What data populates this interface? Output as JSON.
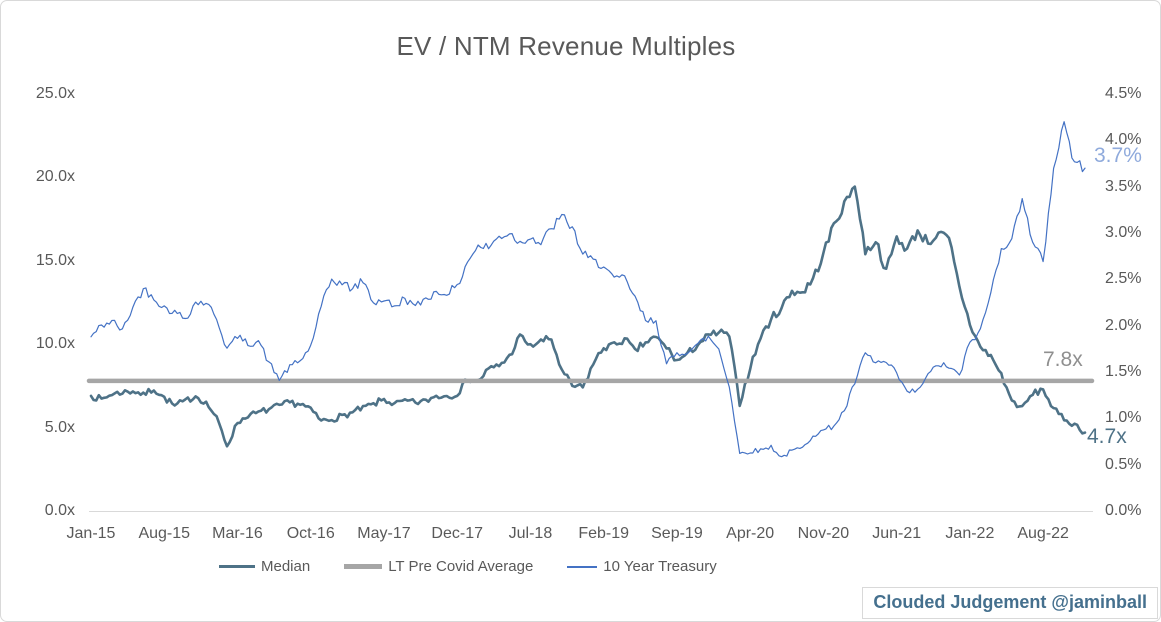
{
  "title": "EV / NTM Revenue Multiples",
  "attribution": "Clouded Judgement @jaminball",
  "annotations": {
    "treasury_last": "3.7%",
    "lt_average": "7.8x",
    "median_last": "4.7x"
  },
  "legend": {
    "median_label": "Median",
    "lt_average_label": "LT Pre Covid Average",
    "treasury_label": "10 Year Treasury"
  },
  "colors": {
    "median": "#4E7287",
    "lt_average": "#A6A6A6",
    "treasury": "#4472C4",
    "treasury_annotation": "#8FAADC",
    "median_annotation": "#4E7287",
    "lt_annotation": "#8F8F8F",
    "axis_text": "#595959",
    "axis_line": "#D9D9D9",
    "attribution_text": "#45708E",
    "background": "#FFFFFF"
  },
  "chart_data": {
    "type": "line",
    "title": "EV / NTM Revenue Multiples",
    "x_start": "Jan-15",
    "x_end": "Dec-22",
    "x_frequency": "monthly",
    "x_tick_labels": [
      "Jan-15",
      "Aug-15",
      "Mar-16",
      "Oct-16",
      "May-17",
      "Dec-17",
      "Jul-18",
      "Feb-19",
      "Sep-19",
      "Apr-20",
      "Nov-20",
      "Jun-21",
      "Jan-22",
      "Aug-22"
    ],
    "left_axis": {
      "label_format": "multiple",
      "min": 0,
      "max": 25,
      "ticks": [
        "0.0x",
        "5.0x",
        "10.0x",
        "15.0x",
        "20.0x",
        "25.0x"
      ]
    },
    "right_axis": {
      "label_format": "percent",
      "min": 0,
      "max": 4.5,
      "ticks": [
        "0.0%",
        "0.5%",
        "1.0%",
        "1.5%",
        "2.0%",
        "2.5%",
        "3.0%",
        "3.5%",
        "4.0%",
        "4.5%"
      ]
    },
    "grid": false,
    "legend_position": "bottom",
    "series": [
      {
        "name": "Median",
        "axis": "left",
        "style": "noisy-line",
        "last_value_label": "4.7x",
        "monthly_values": [
          6.9,
          6.7,
          7.0,
          7.1,
          7.2,
          7.0,
          7.3,
          6.8,
          6.3,
          6.6,
          6.9,
          6.5,
          5.6,
          3.9,
          5.3,
          5.7,
          5.9,
          6.1,
          6.3,
          6.5,
          6.4,
          6.1,
          5.4,
          5.5,
          5.7,
          5.9,
          6.2,
          6.4,
          6.7,
          6.4,
          6.6,
          6.5,
          6.6,
          6.9,
          6.9,
          7.0,
          7.9,
          7.8,
          8.5,
          8.7,
          9.3,
          10.5,
          9.9,
          10.2,
          10.3,
          8.4,
          7.5,
          7.4,
          8.8,
          9.8,
          10.0,
          10.3,
          9.6,
          10.1,
          10.4,
          9.8,
          9.0,
          9.4,
          10.0,
          10.5,
          10.7,
          10.5,
          6.4,
          8.6,
          10.4,
          11.5,
          12.2,
          13.2,
          13.1,
          13.9,
          15.4,
          17.2,
          18.4,
          19.6,
          15.5,
          16.2,
          14.4,
          16.4,
          15.7,
          16.8,
          16.1,
          16.6,
          16.3,
          13.4,
          11.2,
          9.8,
          9.3,
          8.2,
          6.6,
          6.2,
          7.0,
          7.3,
          6.1,
          5.5,
          5.2,
          4.7
        ]
      },
      {
        "name": "LT Pre Covid Average",
        "axis": "left",
        "style": "horizontal-line",
        "value": 7.8,
        "value_label": "7.8x"
      },
      {
        "name": "10 Year Treasury",
        "axis": "right",
        "style": "noisy-line",
        "last_value_label": "3.7%",
        "monthly_values": [
          1.88,
          2.0,
          2.05,
          1.95,
          2.2,
          2.4,
          2.3,
          2.2,
          2.15,
          2.08,
          2.25,
          2.25,
          2.08,
          1.75,
          1.88,
          1.8,
          1.84,
          1.6,
          1.42,
          1.56,
          1.62,
          1.78,
          2.2,
          2.5,
          2.45,
          2.4,
          2.48,
          2.25,
          2.28,
          2.2,
          2.3,
          2.2,
          2.3,
          2.36,
          2.35,
          2.42,
          2.7,
          2.86,
          2.84,
          2.96,
          3.0,
          2.9,
          2.96,
          2.88,
          3.05,
          3.18,
          3.06,
          2.77,
          2.7,
          2.65,
          2.5,
          2.52,
          2.3,
          2.05,
          2.06,
          1.58,
          1.7,
          1.72,
          1.8,
          1.88,
          1.75,
          1.35,
          0.62,
          0.64,
          0.66,
          0.7,
          0.58,
          0.65,
          0.68,
          0.82,
          0.87,
          0.92,
          1.08,
          1.38,
          1.7,
          1.6,
          1.6,
          1.48,
          1.28,
          1.3,
          1.47,
          1.58,
          1.55,
          1.46,
          1.82,
          1.95,
          2.35,
          2.85,
          2.92,
          3.4,
          2.88,
          2.7,
          3.7,
          4.2,
          3.75,
          3.7
        ]
      }
    ]
  }
}
